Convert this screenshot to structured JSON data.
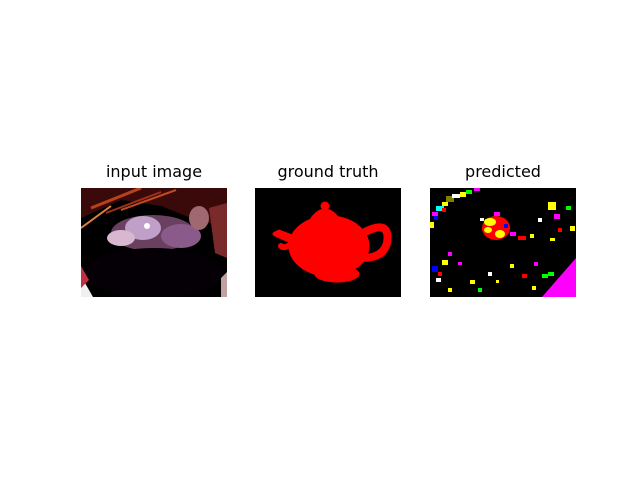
{
  "figure": {
    "panels": [
      {
        "title": "input image"
      },
      {
        "title": "ground truth"
      },
      {
        "title": "predicted"
      }
    ]
  },
  "colors": {
    "background": "#000000",
    "ground_truth_mask": "#ff0000",
    "prediction_palette": [
      "#ff0000",
      "#ffff00",
      "#ff00ff",
      "#00ffff",
      "#0000ff",
      "#00ff00",
      "#ffffff",
      "#808000"
    ]
  }
}
